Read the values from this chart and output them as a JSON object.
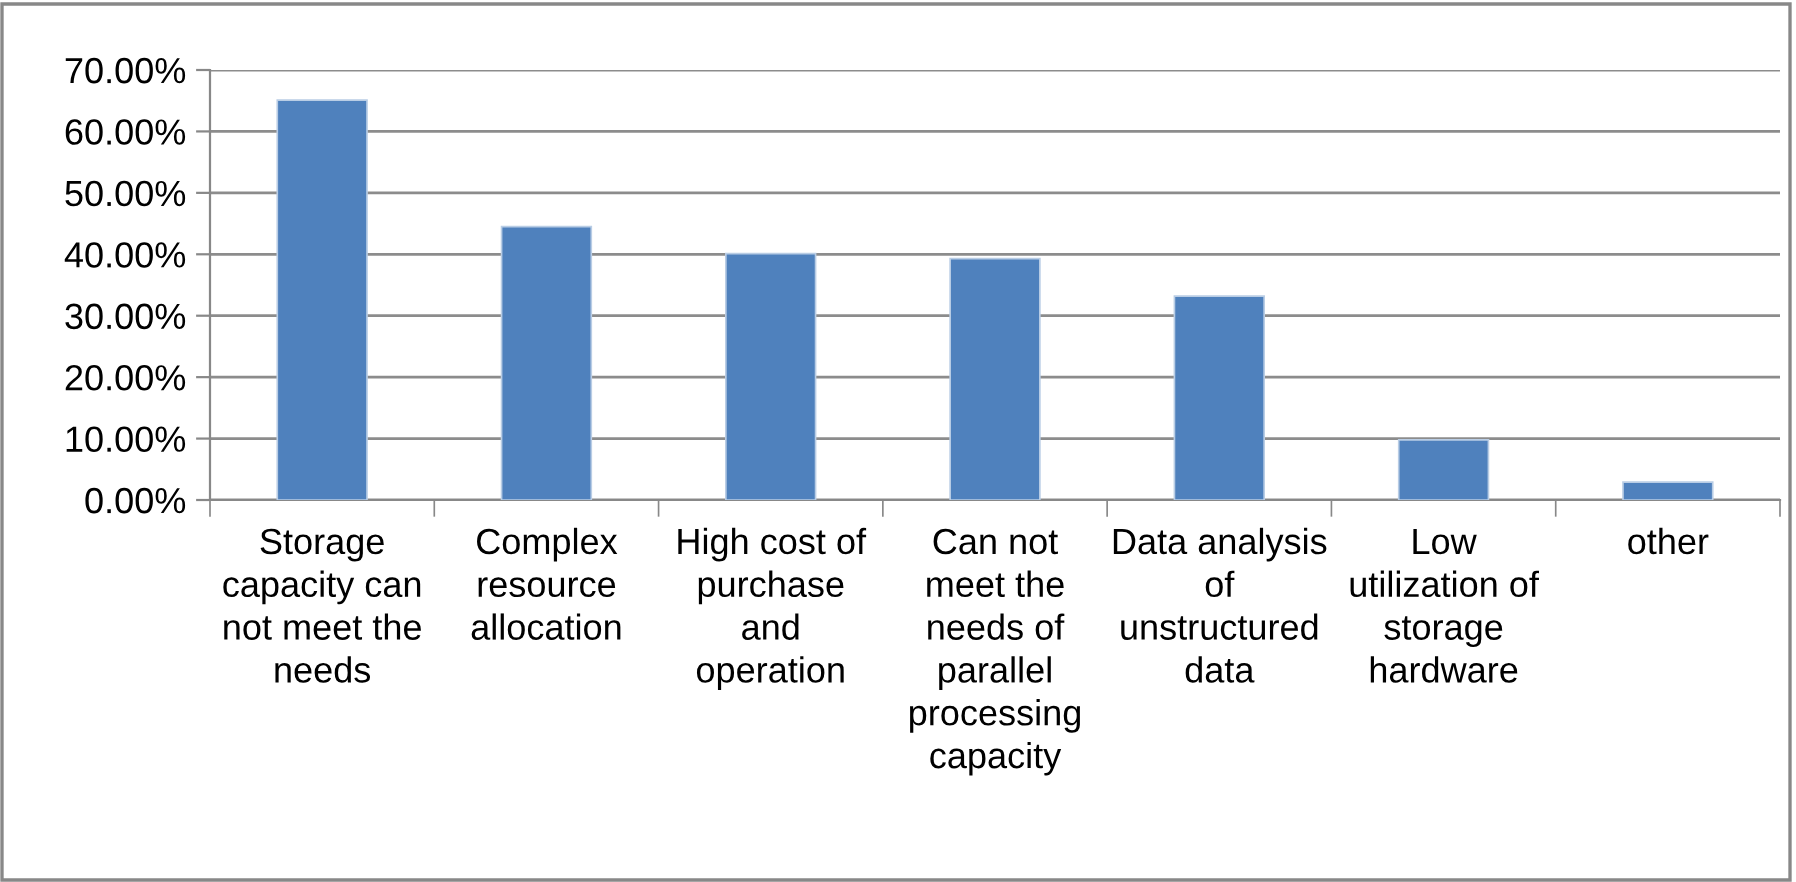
{
  "chart_data": {
    "type": "bar",
    "categories": [
      "Storage\ncapacity can\nnot meet the\nneeds",
      "Complex\nresource\nallocation",
      "High cost of\npurchase\nand\noperation",
      "Can not\nmeet the\nneeds of\nparallel\nprocessing\ncapacity",
      "Data analysis\nof\nunstructured\ndata",
      "Low\nutilization of\nstorage\nhardware",
      "other"
    ],
    "values": [
      65.1,
      44.5,
      40.1,
      39.3,
      33.2,
      9.8,
      2.9
    ],
    "color": "#4f81bd",
    "ylim": [
      0,
      70
    ],
    "yticks": [
      {
        "value": 0,
        "label": "0.00%"
      },
      {
        "value": 10,
        "label": "10.00%"
      },
      {
        "value": 20,
        "label": "20.00%"
      },
      {
        "value": 30,
        "label": "30.00%"
      },
      {
        "value": 40,
        "label": "40.00%"
      },
      {
        "value": 50,
        "label": "50.00%"
      },
      {
        "value": 60,
        "label": "60.00%"
      },
      {
        "value": 70,
        "label": "70.00%"
      }
    ],
    "grid": "y",
    "legend": false
  }
}
